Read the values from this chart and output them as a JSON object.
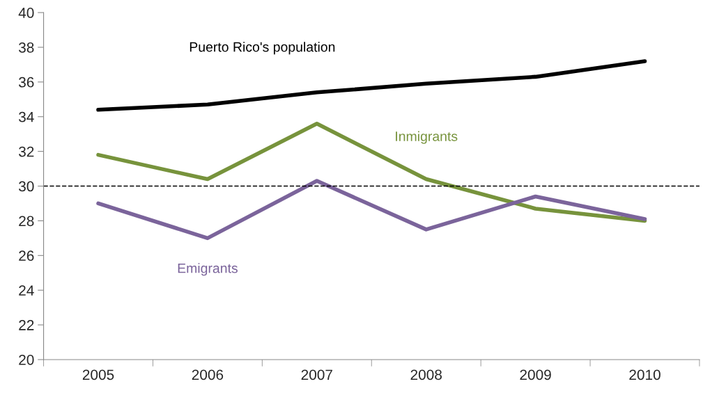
{
  "chart_data": {
    "type": "line",
    "categories": [
      "2005",
      "2006",
      "2007",
      "2008",
      "2009",
      "2010"
    ],
    "series": [
      {
        "name": "Puerto Rico's population",
        "color": "#000000",
        "values": [
          34.4,
          34.7,
          35.4,
          35.9,
          36.3,
          37.2
        ]
      },
      {
        "name": "Inmigrants",
        "color": "#77933c",
        "values": [
          31.8,
          30.4,
          33.6,
          30.4,
          28.7,
          28.0
        ]
      },
      {
        "name": "Emigrants",
        "color": "#7b649b",
        "values": [
          29.0,
          27.0,
          30.3,
          27.5,
          29.4,
          28.1
        ]
      }
    ],
    "ylim": [
      20,
      40
    ],
    "yticks": [
      20,
      22,
      24,
      26,
      28,
      30,
      32,
      34,
      36,
      38,
      40
    ],
    "ref_lines": [
      {
        "axis": "y",
        "value": 30,
        "color": "#000000",
        "line_style": "dashed"
      }
    ],
    "grid": false,
    "legend": false,
    "marker": "none",
    "line_style": "solid"
  }
}
